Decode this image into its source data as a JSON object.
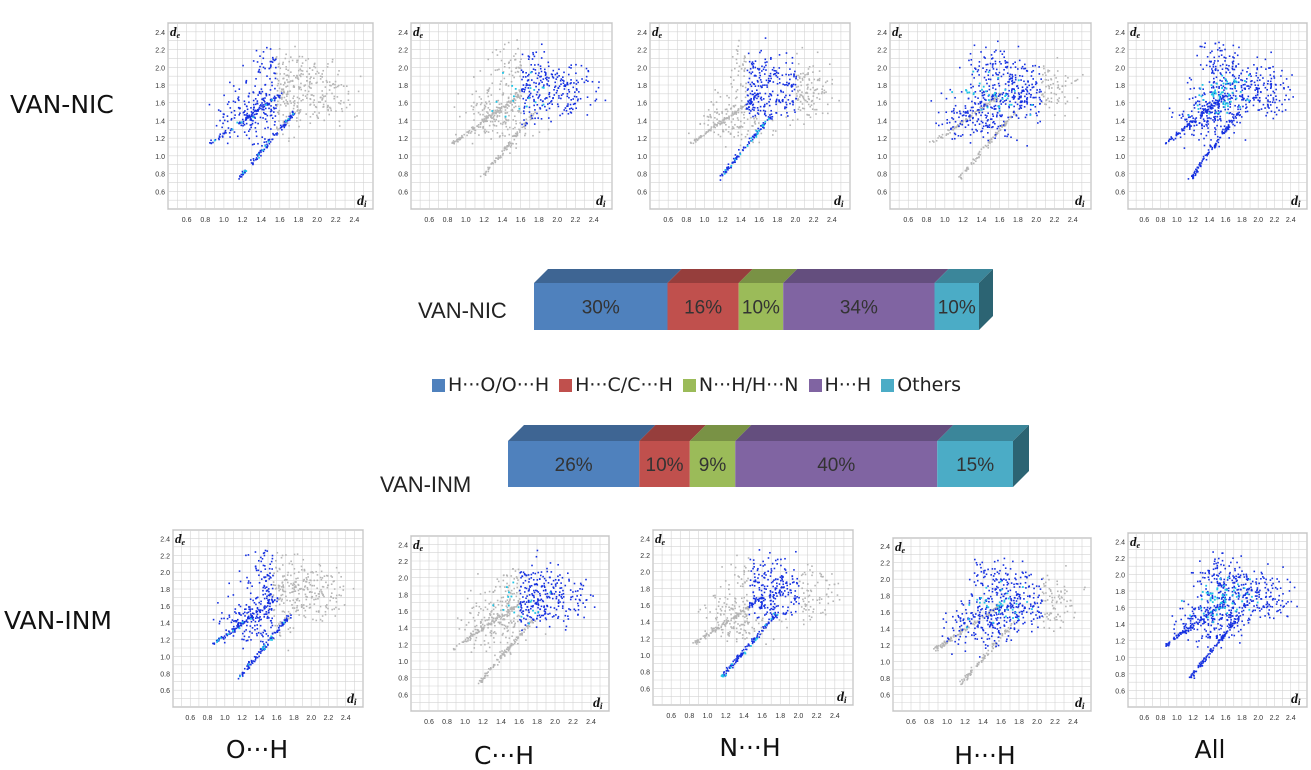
{
  "row_labels": {
    "top": "VAN-NIC",
    "bottom": "VAN-INM"
  },
  "bottom_labels": [
    "O···H",
    "C···H",
    "N···H",
    "H···H",
    "All"
  ],
  "axis": {
    "xlabel": "d",
    "xlabel_sub": "i",
    "ylabel": "d",
    "ylabel_sub": "e",
    "xticks": [
      "0.6",
      "0.8",
      "1.0",
      "1.2",
      "1.4",
      "1.6",
      "1.8",
      "2.0",
      "2.2",
      "2.4"
    ],
    "yticks": [
      "0.6",
      "0.8",
      "1.0",
      "1.2",
      "1.4",
      "1.6",
      "1.8",
      "2.0",
      "2.2",
      "2.4"
    ]
  },
  "colors": {
    "ho": "#4f81bd",
    "hc": "#c0504d",
    "nh": "#9bbb59",
    "hh": "#8064a2",
    "others": "#4bacc6",
    "fingerprint_gray": "#b5b5b5",
    "fingerprint_blue": "#1530e0",
    "fingerprint_cyan": "#1fc5e6"
  },
  "chart_data": [
    {
      "type": "bar",
      "stacked": true,
      "orientation": "horizontal",
      "categories": [
        "VAN-NIC",
        "VAN-INM"
      ],
      "series": [
        {
          "name": "H···O/O···H",
          "values": [
            30,
            26
          ],
          "labels": [
            "30%",
            "26%"
          ]
        },
        {
          "name": "H···C/C···H",
          "values": [
            16,
            10
          ],
          "labels": [
            "16%",
            "10%"
          ]
        },
        {
          "name": "N···H/H···N",
          "values": [
            10,
            9
          ],
          "labels": [
            "10%",
            "9%"
          ]
        },
        {
          "name": "H···H",
          "values": [
            34,
            40
          ],
          "labels": [
            "34%",
            "40%"
          ]
        },
        {
          "name": "Others",
          "values": [
            10,
            15
          ],
          "labels": [
            "10%",
            "15%"
          ]
        }
      ],
      "legend_position": "between-bars",
      "xlim": [
        0,
        100
      ]
    },
    {
      "type": "scatter",
      "kind": "2D fingerprint plots",
      "xlim": [
        0.4,
        2.6
      ],
      "ylim": [
        0.4,
        2.5
      ],
      "grid": true,
      "panels": [
        {
          "row": "VAN-NIC",
          "contact": "O···H"
        },
        {
          "row": "VAN-NIC",
          "contact": "C···H"
        },
        {
          "row": "VAN-NIC",
          "contact": "N···H"
        },
        {
          "row": "VAN-NIC",
          "contact": "H···H"
        },
        {
          "row": "VAN-NIC",
          "contact": "All"
        },
        {
          "row": "VAN-INM",
          "contact": "O···H"
        },
        {
          "row": "VAN-INM",
          "contact": "C···H"
        },
        {
          "row": "VAN-INM",
          "contact": "N···H"
        },
        {
          "row": "VAN-INM",
          "contact": "H···H"
        },
        {
          "row": "VAN-INM",
          "contact": "All"
        }
      ]
    }
  ]
}
